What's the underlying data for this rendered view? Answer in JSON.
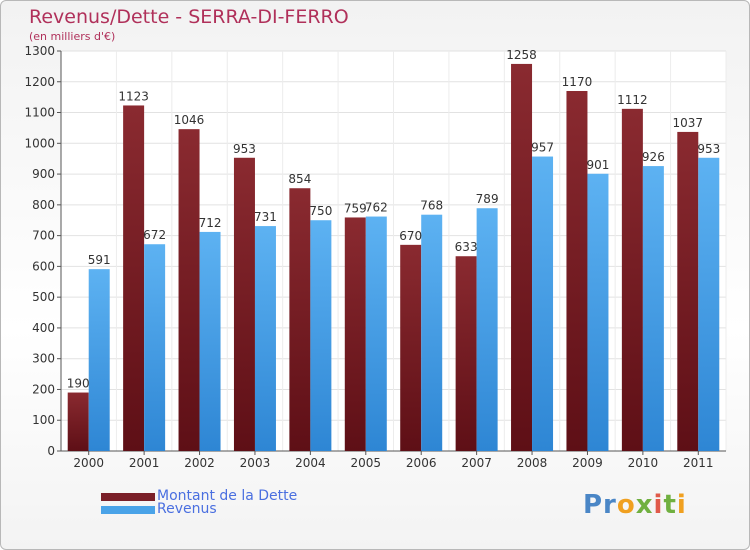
{
  "title": "Revenus/Dette - SERRA-DI-FERRO",
  "subtitle": "(en milliers d'€)",
  "legend": [
    {
      "label": "Montant de la Dette",
      "color": "#7a1f28"
    },
    {
      "label": "Revenus",
      "color": "#4aa3e8"
    }
  ],
  "logo": "Proxiti",
  "colors": {
    "debt": "#7a1f28",
    "revenue": "#4aa3e8",
    "title": "#b0305a",
    "legend_text": "#4a6fe0"
  },
  "chart_data": {
    "type": "bar",
    "title": "Revenus/Dette - SERRA-DI-FERRO",
    "categories": [
      "2000",
      "2001",
      "2002",
      "2003",
      "2004",
      "2005",
      "2006",
      "2007",
      "2008",
      "2009",
      "2010",
      "2011"
    ],
    "series": [
      {
        "name": "Montant de la Dette",
        "values": [
          190,
          1123,
          1046,
          953,
          854,
          759,
          670,
          633,
          1258,
          1170,
          1112,
          1037
        ]
      },
      {
        "name": "Revenus",
        "values": [
          591,
          672,
          712,
          731,
          750,
          762,
          768,
          789,
          957,
          901,
          926,
          953
        ]
      }
    ],
    "ylim": [
      0,
      1300
    ],
    "yticks": [
      0,
      100,
      200,
      300,
      400,
      500,
      600,
      700,
      800,
      900,
      1000,
      1100,
      1200,
      1300
    ],
    "grid": true,
    "legend_position": "bottom-left"
  }
}
